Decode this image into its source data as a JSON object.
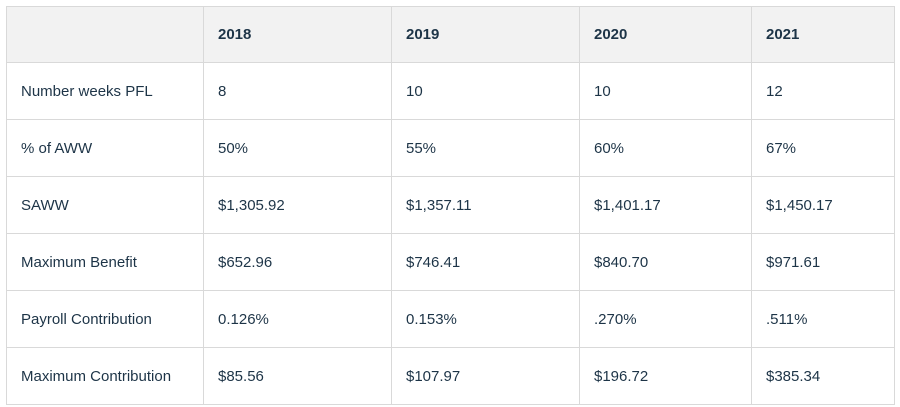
{
  "table": {
    "headers": [
      "",
      "2018",
      "2019",
      "2020",
      "2021"
    ],
    "rows": [
      [
        "Number weeks PFL",
        "8",
        "10",
        "10",
        "12"
      ],
      [
        "% of AWW",
        "50%",
        "55%",
        "60%",
        "67%"
      ],
      [
        "SAWW",
        "$1,305.92",
        "$1,357.11",
        "$1,401.17",
        "$1,450.17"
      ],
      [
        "Maximum Benefit",
        "$652.96",
        "$746.41",
        "$840.70",
        "$971.61"
      ],
      [
        "Payroll Contribution",
        "0.126%",
        "0.153%",
        ".270%",
        ".511%"
      ],
      [
        "Maximum Contribution",
        "$85.56",
        "$107.97",
        "$196.72",
        "$385.34"
      ]
    ]
  }
}
